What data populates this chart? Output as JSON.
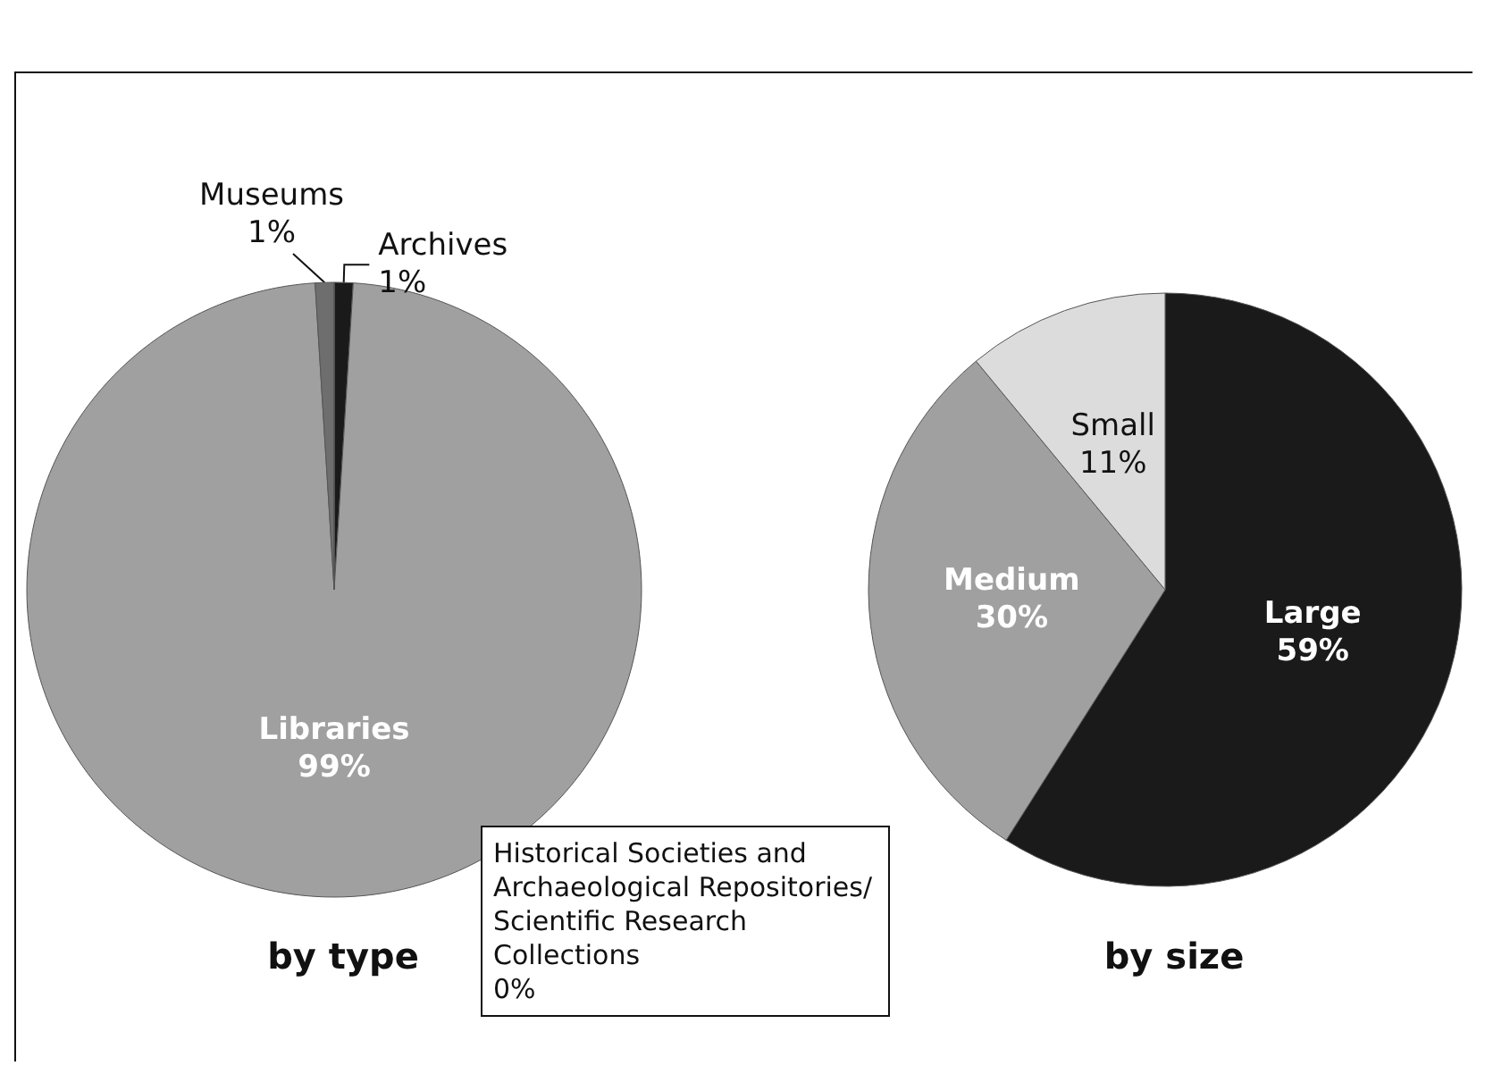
{
  "chart_data": [
    {
      "type": "pie",
      "title": "by type",
      "categories": [
        "Archives",
        "Libraries",
        "Museums",
        "Historical Societies and Archaeological Repositories/Scientific Research Collections"
      ],
      "values": [
        1,
        99,
        1,
        0
      ],
      "value_labels": [
        "1%",
        "99%",
        "1%",
        "0%"
      ],
      "colors": [
        "#1a1a1a",
        "#a0a0a0",
        "#6e6e6e",
        "#dcdcdc"
      ],
      "legend": false
    },
    {
      "type": "pie",
      "title": "by size",
      "categories": [
        "Large",
        "Medium",
        "Small"
      ],
      "values": [
        59,
        30,
        11
      ],
      "value_labels": [
        "59%",
        "30%",
        "11%"
      ],
      "colors": [
        "#1a1a1a",
        "#a0a0a0",
        "#dcdcdc"
      ],
      "legend": false
    }
  ]
}
